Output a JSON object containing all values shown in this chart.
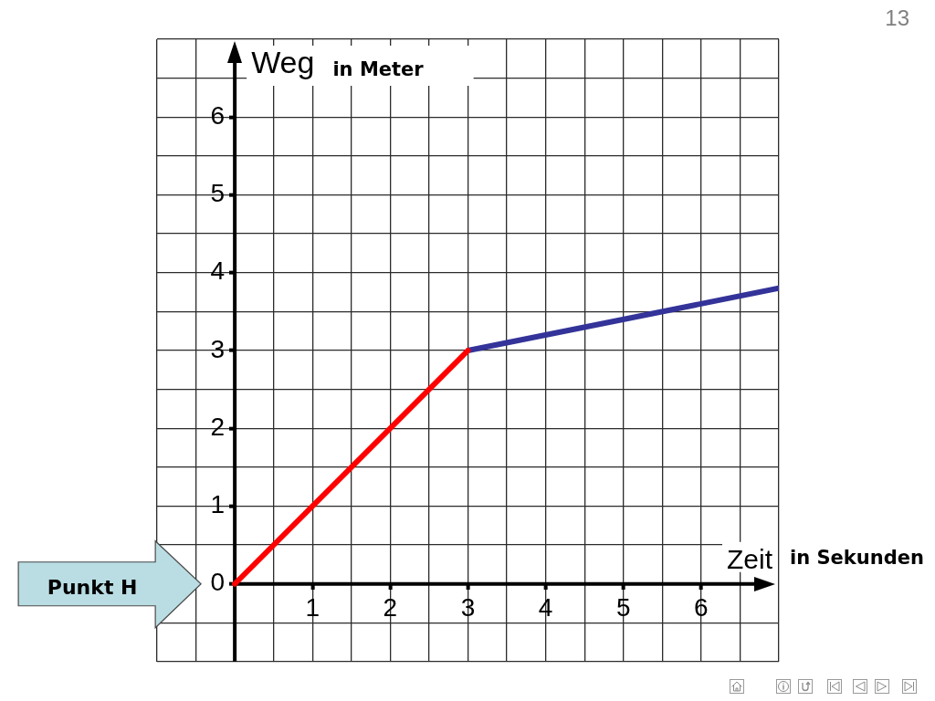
{
  "chart_data": {
    "type": "line",
    "xlabel": "Zeit",
    "ylabel": "Weg",
    "annotations": [
      "in Meter",
      "in Sekunden",
      "Punkt H",
      "13"
    ],
    "series": [
      {
        "color": "#ff0000",
        "x": [
          0,
          3
        ],
        "values": [
          0,
          3
        ]
      },
      {
        "color": "#333399",
        "x": [
          3,
          7
        ],
        "values": [
          3,
          3.8
        ]
      }
    ],
    "xlim": [
      -1,
      7
    ],
    "ylim": [
      -1,
      7
    ],
    "xticks": [
      {
        "value": -1,
        "label": null
      },
      {
        "value": -0.5,
        "label": null
      },
      {
        "value": 0,
        "label": null
      },
      {
        "value": 0.5,
        "label": null
      },
      1,
      {
        "value": 1.5,
        "label": null
      },
      2,
      {
        "value": 2.5,
        "label": null
      },
      3,
      {
        "value": 3.5,
        "label": null
      },
      4,
      {
        "value": 4.5,
        "label": null
      },
      5,
      {
        "value": 5.5,
        "label": null
      },
      6,
      {
        "value": 6.5,
        "label": null
      },
      {
        "value": 7,
        "label": null
      }
    ],
    "yticks": [
      {
        "value": -1,
        "label": null
      },
      {
        "value": -0.5,
        "label": null
      },
      0,
      {
        "value": 0.5,
        "label": null
      },
      1,
      {
        "value": 1.5,
        "label": null
      },
      2,
      {
        "value": 2.5,
        "label": null
      },
      3,
      {
        "value": 3.5,
        "label": null
      },
      4,
      {
        "value": 4.5,
        "label": null
      },
      5,
      {
        "value": 5.5,
        "label": null
      },
      6,
      {
        "value": 6.5,
        "label": null
      },
      {
        "value": 7,
        "label": null
      }
    ],
    "grid": true
  }
}
